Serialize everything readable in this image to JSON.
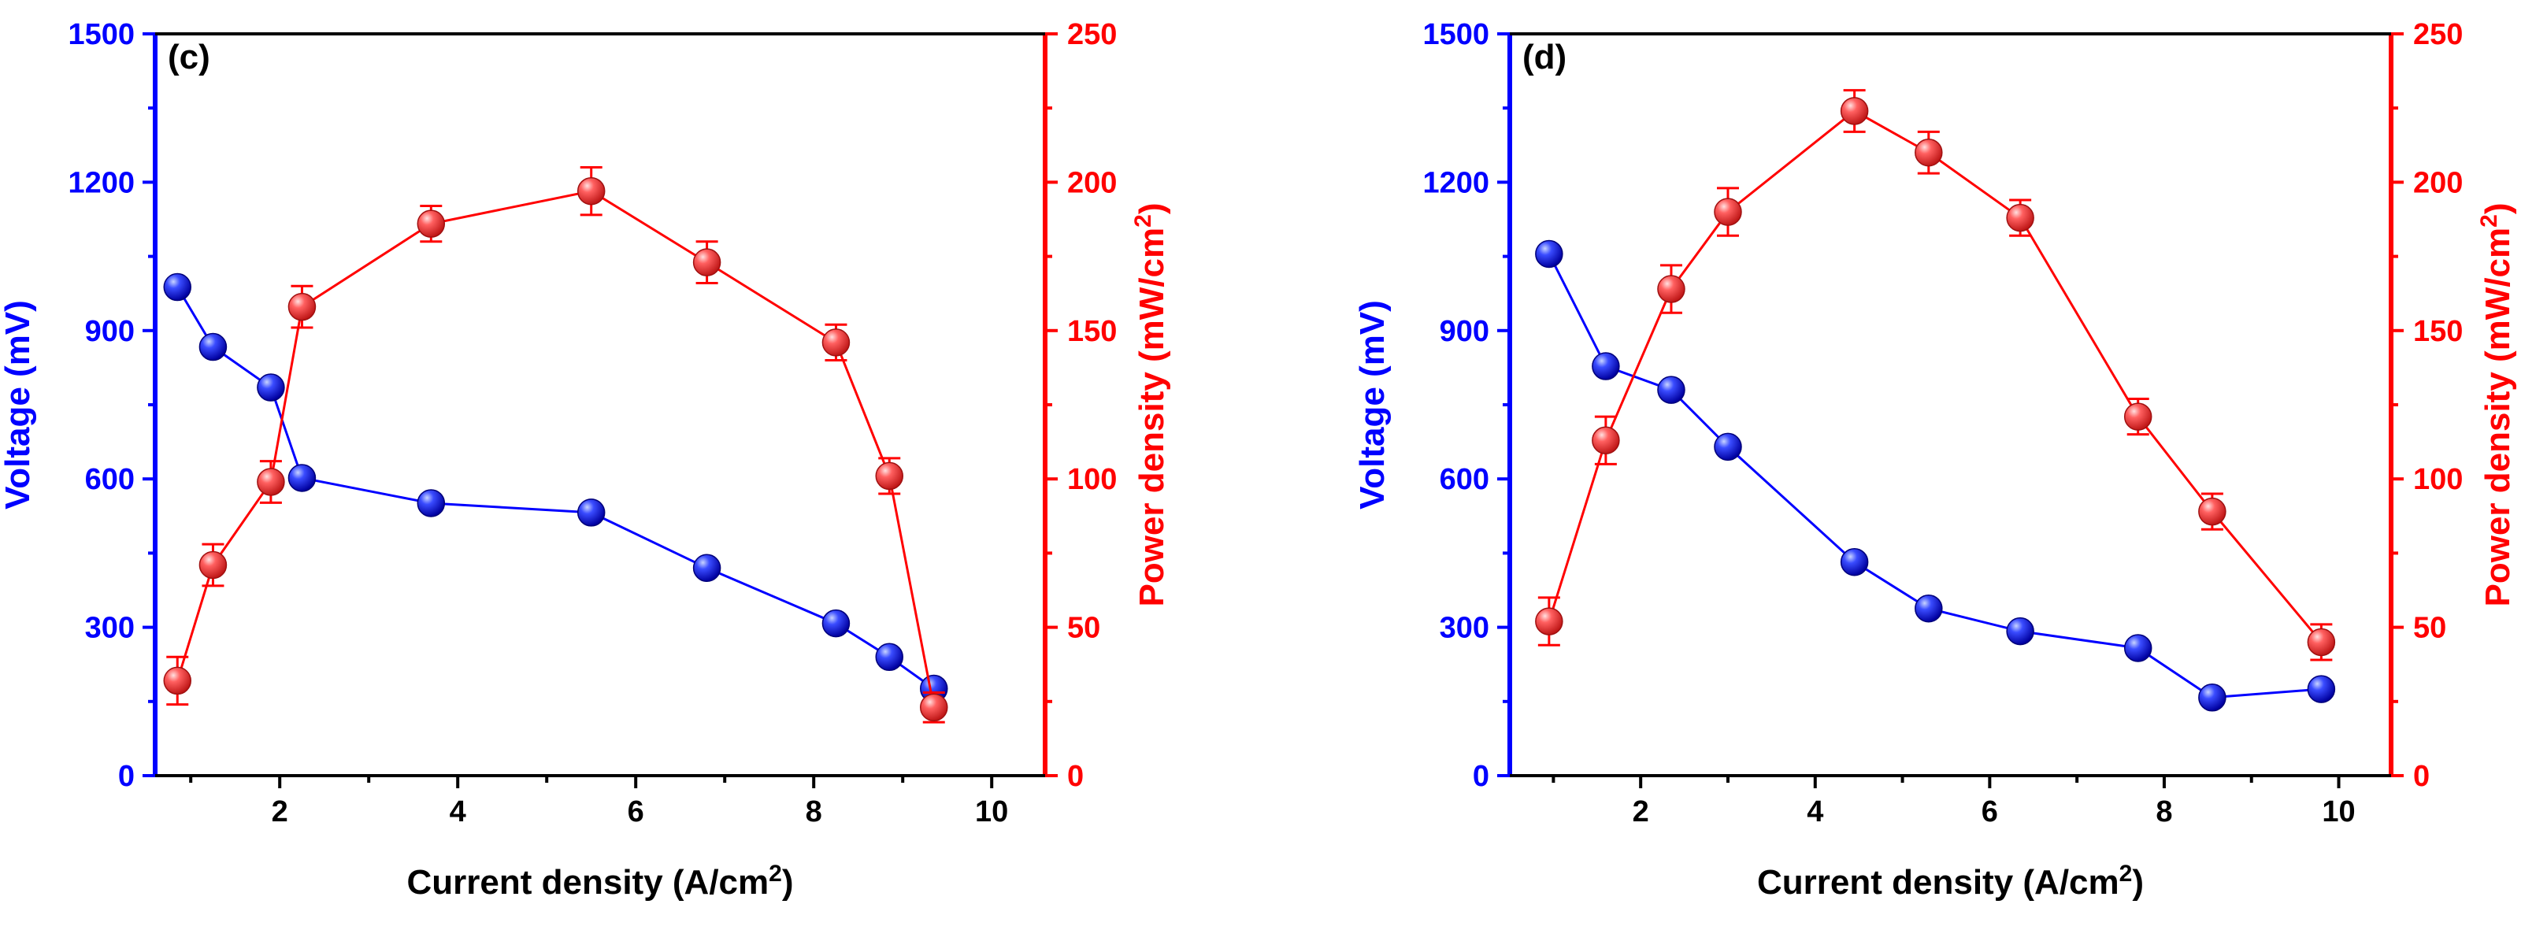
{
  "colors": {
    "voltage": "#0000ff",
    "power": "#ff0000",
    "voltage_marker": "#1010dd",
    "power_marker": "#ee4444",
    "axis": "#000000"
  },
  "chart_data": [
    {
      "type": "line",
      "panel_label": "(c)",
      "xlabel": "Current density (A/cm",
      "xlabel_sup": "2",
      "xlabel_end": ")",
      "ylabel_left": "Voltage (mV)",
      "ylabel_right": "Power density (mW/cm",
      "ylabel_right_sup": "2",
      "ylabel_right_end": ")",
      "xlim": [
        0.6,
        10.6
      ],
      "ylim_left": [
        0,
        1500
      ],
      "ylim_right": [
        0,
        250
      ],
      "x_major_ticks": [
        2,
        4,
        6,
        8,
        10
      ],
      "x_tick_labels": [
        "2",
        "4",
        "6",
        "8",
        "10"
      ],
      "x_minor_ticks": [
        1,
        3,
        5,
        7,
        9
      ],
      "y_left_ticks": [
        0,
        300,
        600,
        900,
        1200,
        1500
      ],
      "y_left_tick_labels": [
        "0",
        "300",
        "600",
        "900",
        "1200",
        "1500"
      ],
      "y_right_ticks": [
        0,
        50,
        100,
        150,
        200,
        250
      ],
      "y_right_tick_labels": [
        "0",
        "50",
        "100",
        "150",
        "200",
        "250"
      ],
      "grid": false,
      "series": [
        {
          "name": "Voltage",
          "axis": "left",
          "x": [
            0.85,
            1.25,
            1.9,
            2.25,
            3.7,
            5.5,
            6.8,
            8.25,
            8.85,
            9.35
          ],
          "values": [
            988,
            867,
            785,
            602,
            551,
            532,
            420,
            308,
            240,
            176
          ]
        },
        {
          "name": "Power density",
          "axis": "right",
          "x": [
            0.85,
            1.25,
            1.9,
            2.25,
            3.7,
            5.5,
            6.8,
            8.25,
            8.85,
            9.35
          ],
          "values": [
            32,
            71,
            99,
            158,
            186,
            197,
            173,
            146,
            101,
            23
          ],
          "error": [
            8,
            7,
            7,
            7,
            6,
            8,
            7,
            6,
            6,
            5
          ]
        }
      ]
    },
    {
      "type": "line",
      "panel_label": "(d)",
      "xlabel": "Current density (A/cm",
      "xlabel_sup": "2",
      "xlabel_end": ")",
      "ylabel_left": "Voltage (mV)",
      "ylabel_right": "Power density (mW/cm",
      "ylabel_right_sup": "2",
      "ylabel_right_end": ")",
      "xlim": [
        0.5,
        10.6
      ],
      "ylim_left": [
        0,
        1500
      ],
      "ylim_right": [
        0,
        250
      ],
      "x_major_ticks": [
        2,
        4,
        6,
        8,
        10
      ],
      "x_tick_labels": [
        "2",
        "4",
        "6",
        "8",
        "10"
      ],
      "x_minor_ticks": [
        1,
        3,
        5,
        7,
        9
      ],
      "y_left_ticks": [
        0,
        300,
        600,
        900,
        1200,
        1500
      ],
      "y_left_tick_labels": [
        "0",
        "300",
        "600",
        "900",
        "1200",
        "1500"
      ],
      "y_right_ticks": [
        0,
        50,
        100,
        150,
        200,
        250
      ],
      "y_right_tick_labels": [
        "0",
        "50",
        "100",
        "150",
        "200",
        "250"
      ],
      "grid": false,
      "series": [
        {
          "name": "Voltage",
          "axis": "left",
          "x": [
            0.95,
            1.6,
            2.35,
            3.0,
            4.45,
            5.3,
            6.35,
            7.7,
            8.55,
            9.8
          ],
          "values": [
            1055,
            828,
            780,
            665,
            432,
            338,
            292,
            258,
            158,
            175
          ]
        },
        {
          "name": "Power density",
          "axis": "right",
          "x": [
            0.95,
            1.6,
            2.35,
            3.0,
            4.45,
            5.3,
            6.35,
            7.7,
            8.55,
            9.8
          ],
          "values": [
            52,
            113,
            164,
            190,
            224,
            210,
            188,
            121,
            89,
            45
          ],
          "error": [
            8,
            8,
            8,
            8,
            7,
            7,
            6,
            6,
            6,
            6
          ]
        }
      ]
    }
  ]
}
